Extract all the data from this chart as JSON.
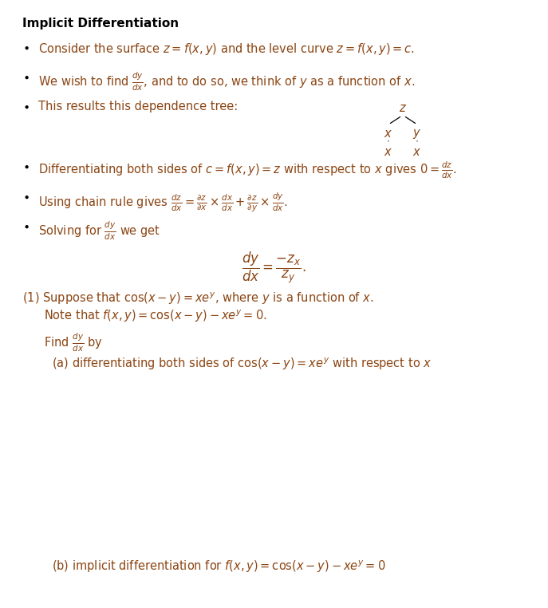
{
  "bg_color": "#ffffff",
  "text_color": "#000000",
  "math_color": "#8B4513",
  "fig_width": 6.87,
  "fig_height": 7.62,
  "dpi": 100
}
